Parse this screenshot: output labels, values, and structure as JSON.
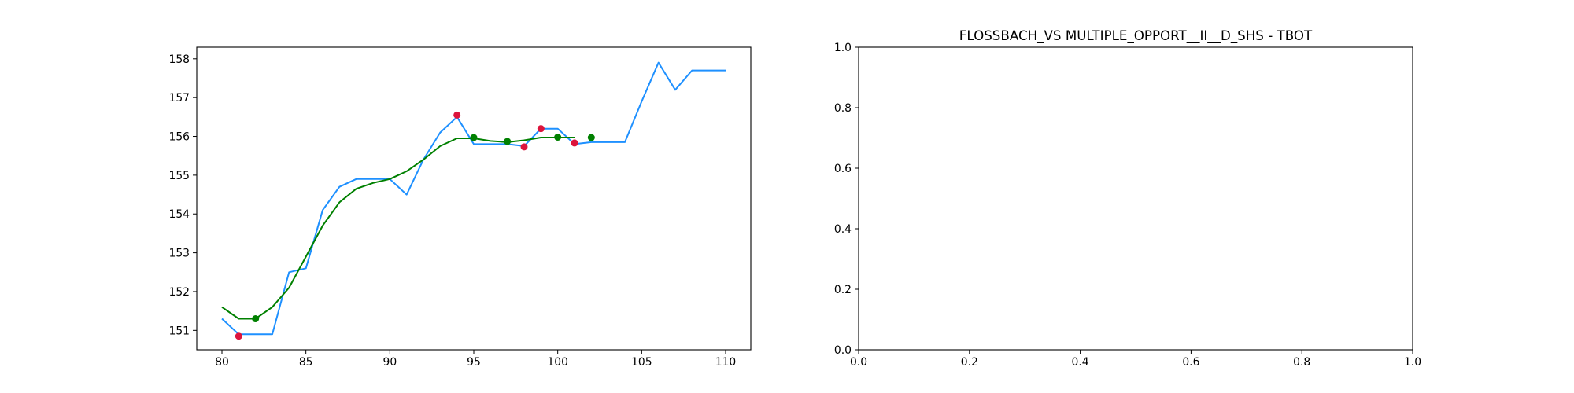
{
  "chart_data": [
    {
      "type": "line",
      "title": "",
      "xlabel": "",
      "ylabel": "",
      "xlim": [
        78.5,
        111.5
      ],
      "ylim": [
        150.5,
        158.3
      ],
      "xticks": [
        80,
        85,
        90,
        95,
        100,
        105,
        110
      ],
      "yticks": [
        151,
        152,
        153,
        154,
        155,
        156,
        157,
        158
      ],
      "grid": false,
      "series": [
        {
          "kind": "line",
          "color": "#1e90ff",
          "x": [
            80,
            81,
            82,
            83,
            84,
            85,
            86,
            87,
            88,
            89,
            90,
            91,
            92,
            93,
            94,
            95,
            96,
            97,
            98,
            99,
            100,
            101,
            102,
            103,
            104,
            105,
            106,
            107,
            108,
            109,
            110
          ],
          "y": [
            151.3,
            150.9,
            150.9,
            150.9,
            152.5,
            152.6,
            154.1,
            154.7,
            154.9,
            154.9,
            154.9,
            154.5,
            155.4,
            156.1,
            156.5,
            155.8,
            155.8,
            155.8,
            155.75,
            156.2,
            156.2,
            155.8,
            155.85,
            155.85,
            155.85,
            156.9,
            157.9,
            157.2,
            157.7,
            157.7,
            157.7
          ]
        },
        {
          "kind": "line",
          "color": "#008000",
          "x": [
            80,
            81,
            82,
            83,
            84,
            85,
            86,
            87,
            88,
            89,
            90,
            91,
            92,
            93,
            94,
            95,
            96,
            97,
            98,
            99,
            100,
            101
          ],
          "y": [
            151.6,
            151.3,
            151.3,
            151.6,
            152.1,
            152.9,
            153.7,
            154.3,
            154.65,
            154.8,
            154.9,
            155.1,
            155.4,
            155.75,
            155.95,
            155.95,
            155.88,
            155.85,
            155.9,
            155.97,
            155.97,
            155.97
          ]
        },
        {
          "kind": "scatter",
          "color": "#dc143c",
          "x": [
            81,
            94,
            98,
            99,
            101
          ],
          "y": [
            150.85,
            156.55,
            155.73,
            156.2,
            155.83
          ]
        },
        {
          "kind": "scatter",
          "color": "#008000",
          "x": [
            82,
            95,
            97,
            100,
            102
          ],
          "y": [
            151.3,
            155.97,
            155.87,
            155.98,
            155.97
          ]
        }
      ]
    },
    {
      "type": "line",
      "title": "FLOSSBACH_VS MULTIPLE_OPPORT__II__D_SHS - TBOT",
      "xlabel": "",
      "ylabel": "",
      "xlim": [
        0.0,
        1.0
      ],
      "ylim": [
        0.0,
        1.0
      ],
      "xticks": [
        "0.0",
        "0.2",
        "0.4",
        "0.6",
        "0.8",
        "1.0"
      ],
      "yticks": [
        "0.0",
        "0.2",
        "0.4",
        "0.6",
        "0.8",
        "1.0"
      ],
      "grid": false,
      "series": []
    }
  ]
}
